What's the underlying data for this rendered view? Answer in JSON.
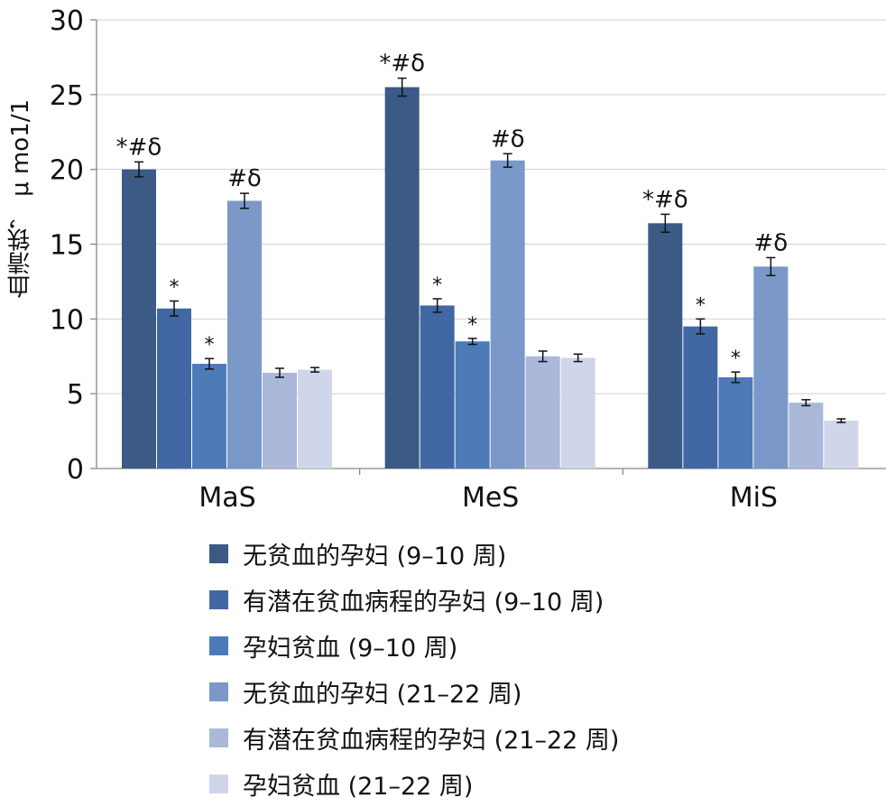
{
  "chart_data": {
    "type": "bar",
    "title": "",
    "xlabel": "",
    "ylabel": "血清铁， μ mo1/1",
    "ylim": [
      0,
      30
    ],
    "yticks": [
      0,
      5,
      10,
      15,
      20,
      25,
      30
    ],
    "grid": true,
    "legend_position": "bottom",
    "categories": [
      "MaS",
      "MeS",
      "MiS"
    ],
    "series": [
      {
        "name": "无贫血的孕妇 (9–10 周)",
        "color": "#3b5a86",
        "values": [
          20.0,
          25.5,
          16.4
        ],
        "errors": [
          0.5,
          0.6,
          0.6
        ],
        "annotations": [
          "*#δ",
          "*#δ",
          "*#δ"
        ]
      },
      {
        "name": "有潜在贫血病程的孕妇 (9–10 周)",
        "color": "#4168a3",
        "values": [
          10.7,
          10.9,
          9.5
        ],
        "errors": [
          0.5,
          0.45,
          0.5
        ],
        "annotations": [
          "*",
          "*",
          "*"
        ]
      },
      {
        "name": "孕妇贫血 (9–10 周)",
        "color": "#4d7bb8",
        "values": [
          7.0,
          8.5,
          6.1
        ],
        "errors": [
          0.35,
          0.2,
          0.35
        ],
        "annotations": [
          "*",
          "*",
          "*"
        ]
      },
      {
        "name": "无贫血的孕妇 (21–22 周)",
        "color": "#7a99c8",
        "values": [
          17.9,
          20.6,
          13.5
        ],
        "errors": [
          0.5,
          0.45,
          0.6
        ],
        "annotations": [
          "#δ",
          "#δ",
          "#δ"
        ]
      },
      {
        "name": "有潜在贫血病程的孕妇 (21–22 周)",
        "color": "#aab8da",
        "values": [
          6.4,
          7.5,
          4.4
        ],
        "errors": [
          0.3,
          0.35,
          0.2
        ],
        "annotations": [
          "",
          "",
          ""
        ]
      },
      {
        "name": "孕妇贫血 (21–22 周)",
        "color": "#cfd6ea",
        "values": [
          6.6,
          7.4,
          3.2
        ],
        "errors": [
          0.15,
          0.25,
          0.12
        ],
        "annotations": [
          "",
          "",
          ""
        ]
      }
    ]
  }
}
